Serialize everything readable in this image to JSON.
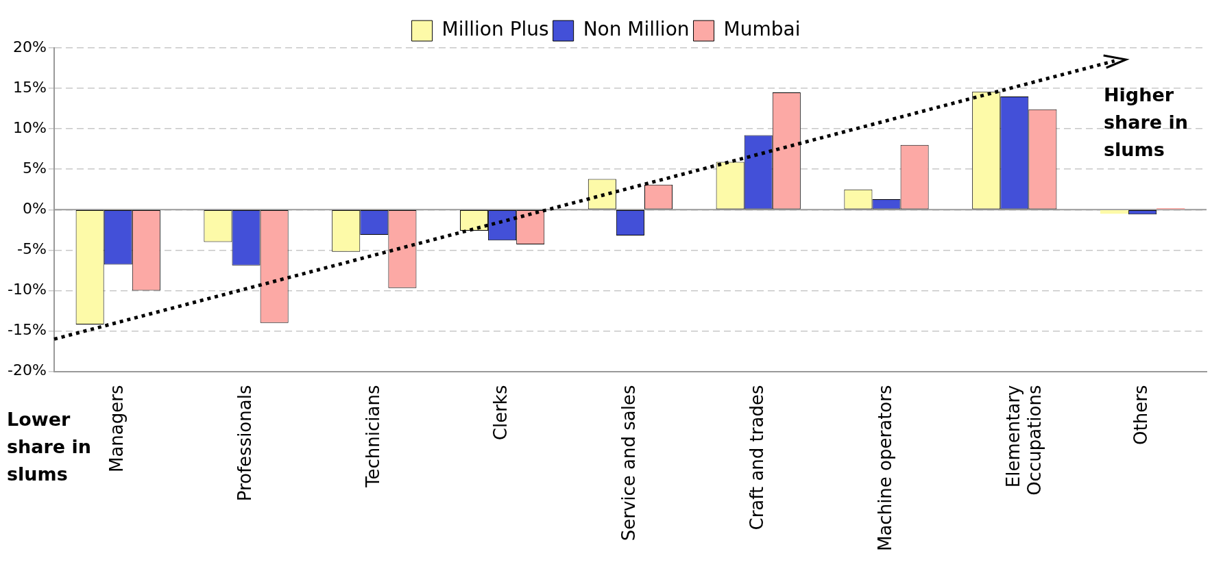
{
  "chart_data": {
    "type": "bar",
    "categories": [
      "Managers",
      "Professionals",
      "Technicians",
      "Clerks",
      "Service and sales",
      "Craft and trades",
      "Machine operators",
      "Elementary Occupations",
      "Others"
    ],
    "series": [
      {
        "name": "Million Plus",
        "color": "#fdfaa8",
        "values": [
          -14.2,
          -4.0,
          -5.2,
          -2.6,
          3.8,
          5.9,
          2.5,
          14.6,
          -0.5
        ]
      },
      {
        "name": "Non Million",
        "color": "#4350d8",
        "values": [
          -6.8,
          -6.9,
          -3.1,
          -3.8,
          -3.2,
          9.2,
          1.3,
          14.0,
          -0.6
        ]
      },
      {
        "name": "Mumbai",
        "color": "#fca9a5",
        "values": [
          -10.0,
          -14.0,
          -9.7,
          -4.3,
          3.1,
          14.5,
          8.0,
          12.4,
          0.2
        ]
      }
    ],
    "ylim": [
      -20,
      20
    ],
    "yticks": [
      {
        "value": -20,
        "label": "-20%"
      },
      {
        "value": -15,
        "label": "-15%"
      },
      {
        "value": -10,
        "label": "-10%"
      },
      {
        "value": -5,
        "label": "-5%"
      },
      {
        "value": 0,
        "label": "0%"
      },
      {
        "value": 5,
        "label": "5%"
      },
      {
        "value": 10,
        "label": "10%"
      },
      {
        "value": 15,
        "label": "15%"
      },
      {
        "value": 20,
        "label": "20%"
      }
    ],
    "grid": "y",
    "legend": "top",
    "ref_lines": [
      {
        "axis": "y",
        "value": 0,
        "color": "#999999"
      }
    ],
    "annotations": [
      "Higher share in slums",
      "Lower share in slums"
    ]
  }
}
